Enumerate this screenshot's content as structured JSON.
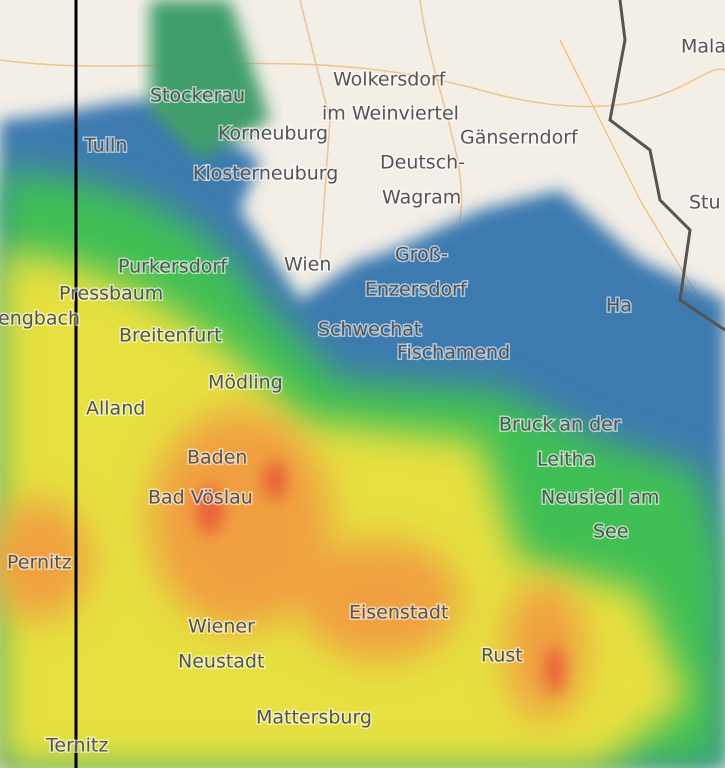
{
  "labels": [
    "Mala",
    "Wolkersdorf",
    "im Weinviertel",
    "Stockerau",
    "Gänserndorf",
    "Tulln",
    "Korneuburg",
    "Deutsch-",
    "Wagram",
    "Klosterneuburg",
    "Stu",
    "Groß-",
    "Enzersdorf",
    "Purkersdorf",
    "Wien",
    "Pressbaum",
    "engbach",
    "Ha",
    "Breitenfurt",
    "Schwechat",
    "Fischamend",
    "Mödling",
    "Alland",
    "Bruck an der",
    "Leitha",
    "Baden",
    "Bad Vöslau",
    "Neusiedl am",
    "See",
    "Pernitz",
    "Eisenstadt",
    "Wiener",
    "Neustadt",
    "Rust",
    "Mattersburg",
    "Ternitz"
  ]
}
